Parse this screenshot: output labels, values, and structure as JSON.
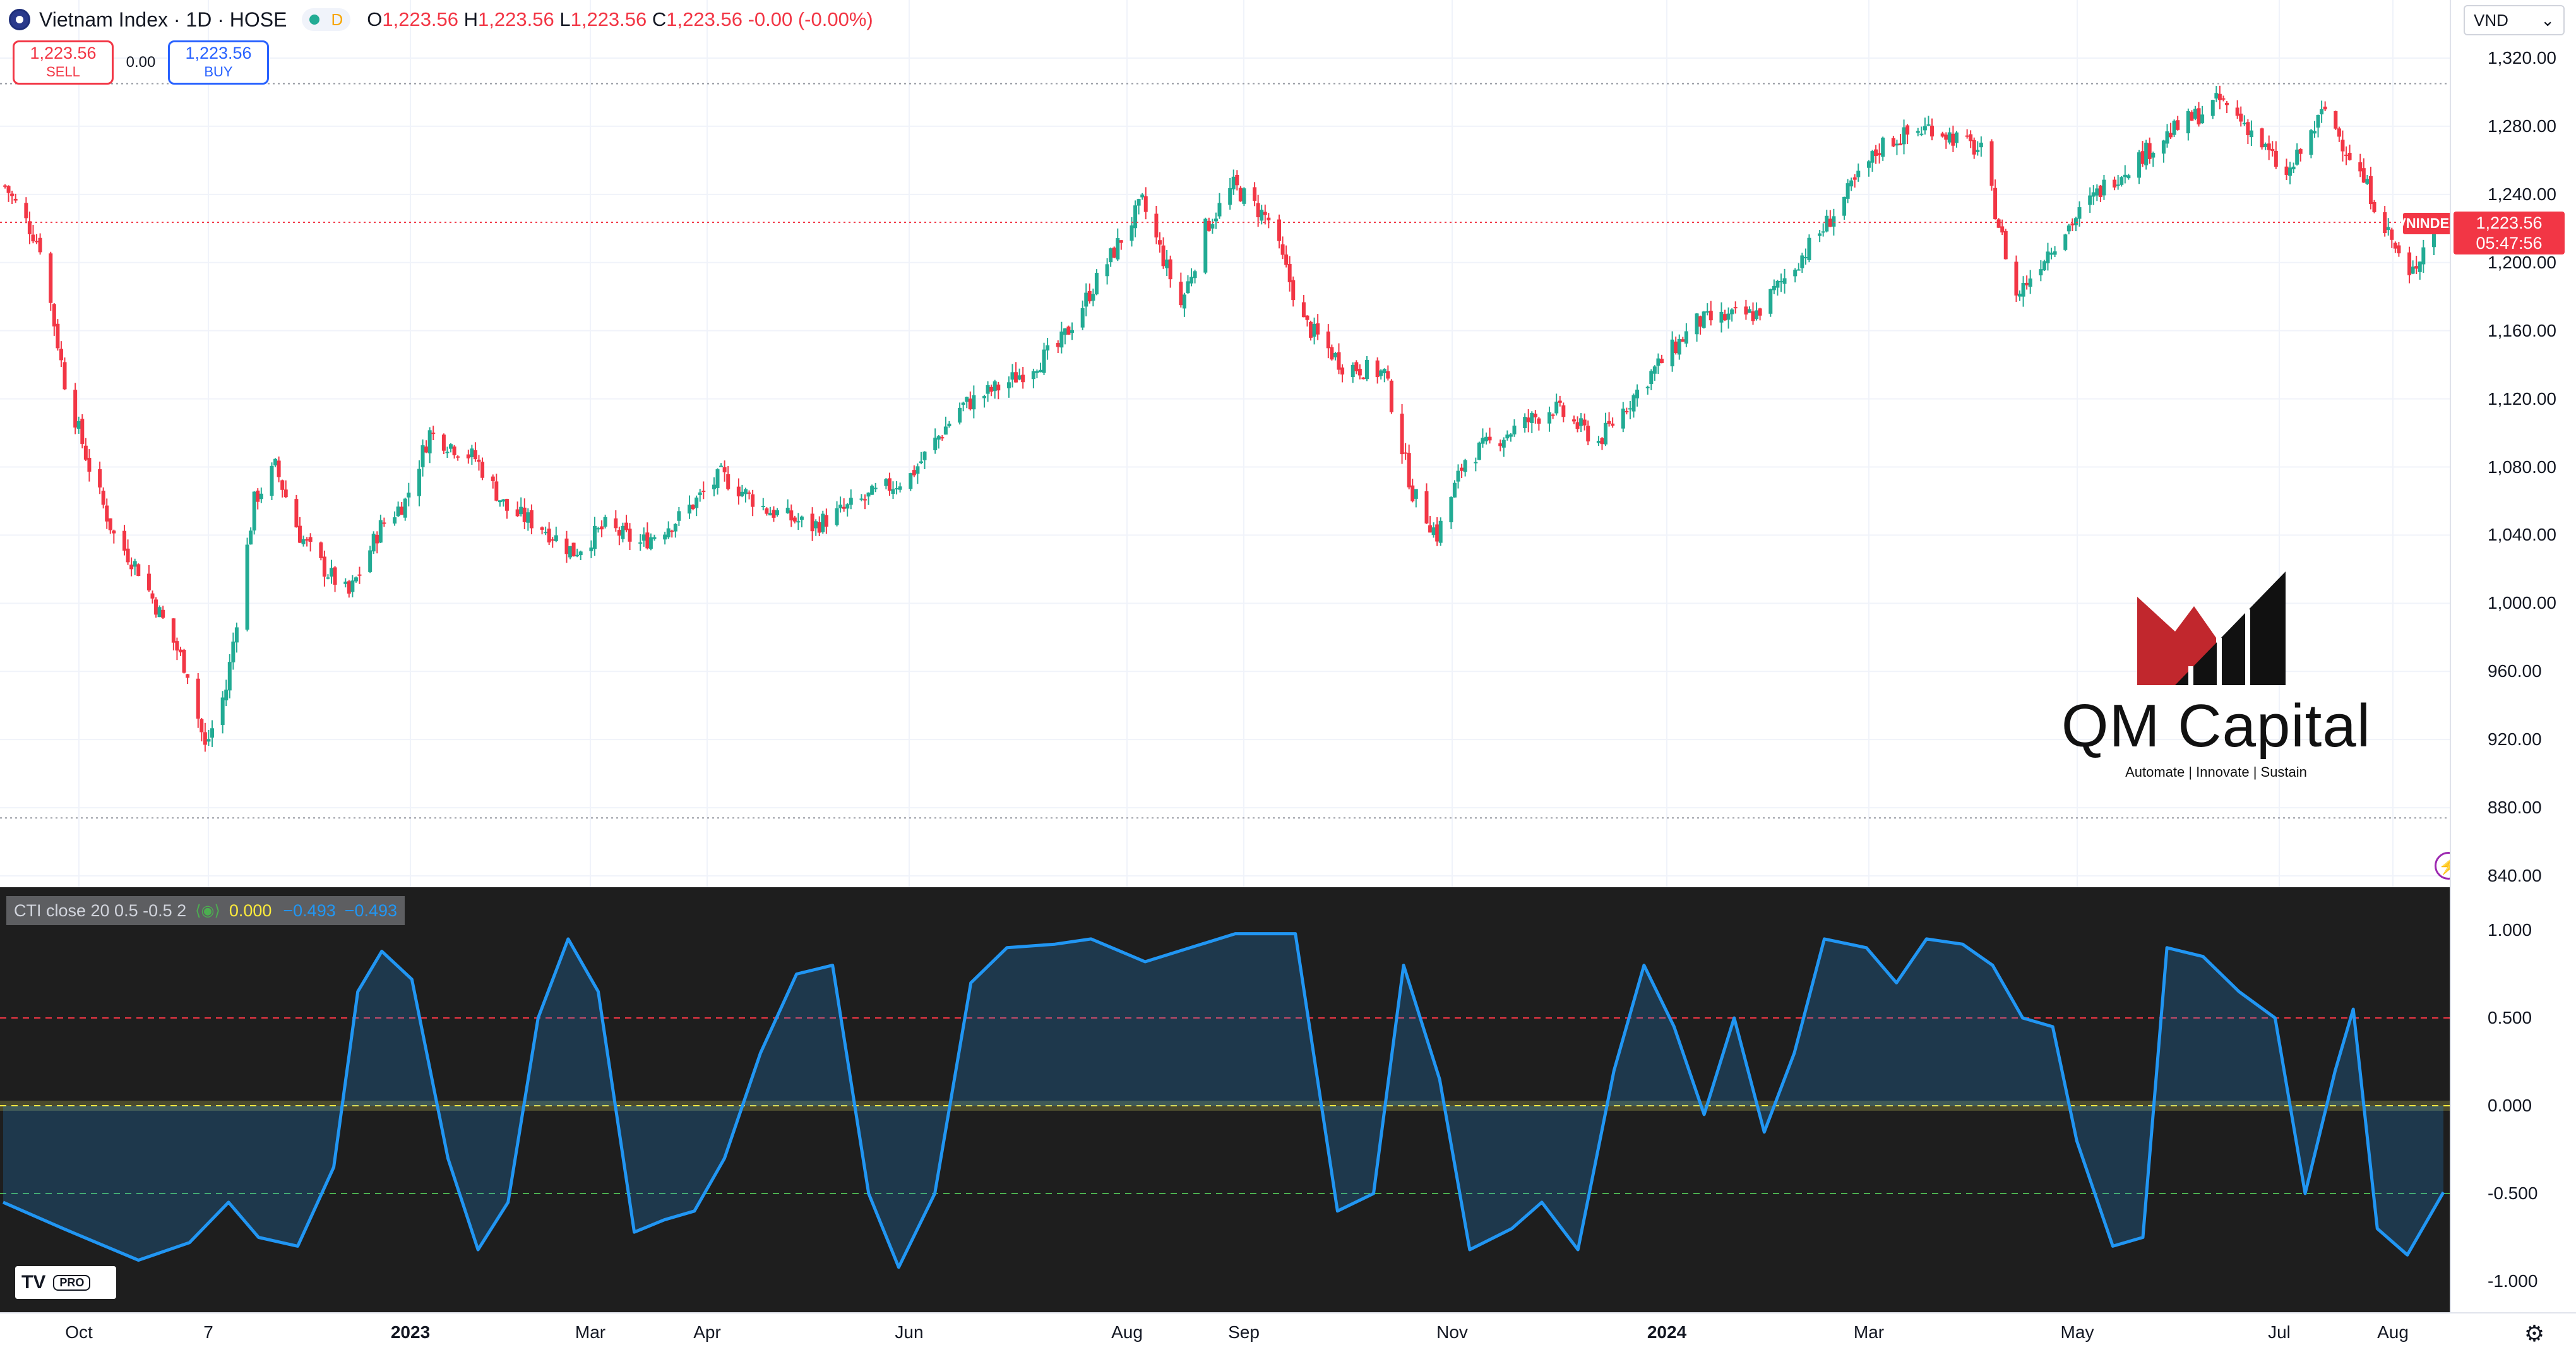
{
  "header": {
    "symbol_title": "Vietnam Index · 1D · HOSE",
    "interval_badge": "D",
    "ohlc": {
      "o_key": "O",
      "o_val": "1,223.56",
      "h_key": "H",
      "h_val": "1,223.56",
      "l_key": "L",
      "l_val": "1,223.56",
      "c_key": "C",
      "c_val": "1,223.56",
      "change": "-0.00 (-0.00%)"
    }
  },
  "trading": {
    "sell_price": "1,223.56",
    "sell_label": "SELL",
    "spread": "0.00",
    "buy_price": "1,223.56",
    "buy_label": "BUY"
  },
  "price_axis": {
    "currency": "VND",
    "currency_icon": "chevron-down-icon",
    "labels": [
      "1,320.00",
      "1,280.00",
      "1,240.00",
      "1,200.00",
      "1,160.00",
      "1,120.00",
      "1,080.00",
      "1,040.00",
      "1,000.00",
      "960.00",
      "920.00",
      "880.00",
      "840.00"
    ],
    "last_price": "1,223.56",
    "countdown": "05:47:56",
    "symbol_tag": "VNINDEX",
    "alert_icon": "lightning-icon"
  },
  "watermark": {
    "name": "QM Capital",
    "tagline": "Automate | Innovate | Sustain"
  },
  "indicator": {
    "legend_name": "CTI close 20 0.5 -0.5 2",
    "eye_icon": "eye-icon",
    "value_zero": "0.000",
    "value_a": "−0.493",
    "value_b": "−0.493",
    "axis_labels": [
      "1.000",
      "0.500",
      "0.000",
      "-0.500",
      "-1.000"
    ],
    "badge_logo": "TV",
    "badge_pro": "PRO"
  },
  "time_axis": {
    "labels": [
      {
        "text": "Oct",
        "bold": false
      },
      {
        "text": "7",
        "bold": false
      },
      {
        "text": "2023",
        "bold": true
      },
      {
        "text": "Mar",
        "bold": false
      },
      {
        "text": "Apr",
        "bold": false
      },
      {
        "text": "Jun",
        "bold": false
      },
      {
        "text": "Aug",
        "bold": false
      },
      {
        "text": "Sep",
        "bold": false
      },
      {
        "text": "Nov",
        "bold": false
      },
      {
        "text": "2024",
        "bold": true
      },
      {
        "text": "Mar",
        "bold": false
      },
      {
        "text": "May",
        "bold": false
      },
      {
        "text": "Jul",
        "bold": false
      },
      {
        "text": "Aug",
        "bold": false
      }
    ],
    "settings_icon": "gear-icon"
  },
  "chart_data": [
    {
      "type": "candlestick",
      "title": "Vietnam Index · 1D · HOSE",
      "ylim": [
        840,
        1320
      ],
      "ylabel": "VND",
      "grid": true,
      "series": [
        {
          "name": "VNINDEX",
          "close_path": [
            [
              "2022-09-20",
              1245
            ],
            [
              "2022-09-30",
              1210
            ],
            [
              "2022-10-07",
              1130
            ],
            [
              "2022-10-14",
              1080
            ],
            [
              "2022-10-21",
              1040
            ],
            [
              "2022-10-28",
              1020
            ],
            [
              "2022-11-04",
              990
            ],
            [
              "2022-11-11",
              960
            ],
            [
              "2022-11-16",
              915
            ],
            [
              "2022-11-22",
              950
            ],
            [
              "2022-11-30",
              1060
            ],
            [
              "2022-12-06",
              1080
            ],
            [
              "2022-12-13",
              1040
            ],
            [
              "2022-12-20",
              1020
            ],
            [
              "2022-12-27",
              1005
            ],
            [
              "2023-01-05",
              1045
            ],
            [
              "2023-01-12",
              1060
            ],
            [
              "2023-01-19",
              1100
            ],
            [
              "2023-02-01",
              1085
            ],
            [
              "2023-02-10",
              1055
            ],
            [
              "2023-02-20",
              1045
            ],
            [
              "2023-03-01",
              1030
            ],
            [
              "2023-03-10",
              1045
            ],
            [
              "2023-03-20",
              1035
            ],
            [
              "2023-03-31",
              1050
            ],
            [
              "2023-04-12",
              1075
            ],
            [
              "2023-04-25",
              1055
            ],
            [
              "2023-05-08",
              1045
            ],
            [
              "2023-05-22",
              1060
            ],
            [
              "2023-06-05",
              1075
            ],
            [
              "2023-06-19",
              1115
            ],
            [
              "2023-07-03",
              1130
            ],
            [
              "2023-07-17",
              1150
            ],
            [
              "2023-07-31",
              1200
            ],
            [
              "2023-08-10",
              1235
            ],
            [
              "2023-08-21",
              1175
            ],
            [
              "2023-08-28",
              1220
            ],
            [
              "2023-09-05",
              1245
            ],
            [
              "2023-09-15",
              1225
            ],
            [
              "2023-09-25",
              1165
            ],
            [
              "2023-10-06",
              1140
            ],
            [
              "2023-10-18",
              1135
            ],
            [
              "2023-10-26",
              1065
            ],
            [
              "2023-11-02",
              1040
            ],
            [
              "2023-11-10",
              1085
            ],
            [
              "2023-11-22",
              1100
            ],
            [
              "2023-12-05",
              1115
            ],
            [
              "2023-12-18",
              1095
            ],
            [
              "2024-01-02",
              1135
            ],
            [
              "2024-01-15",
              1165
            ],
            [
              "2024-02-01",
              1170
            ],
            [
              "2024-02-20",
              1220
            ],
            [
              "2024-03-08",
              1270
            ],
            [
              "2024-03-22",
              1280
            ],
            [
              "2024-04-05",
              1265
            ],
            [
              "2024-04-15",
              1180
            ],
            [
              "2024-04-25",
              1210
            ],
            [
              "2024-05-10",
              1245
            ],
            [
              "2024-05-28",
              1275
            ],
            [
              "2024-06-12",
              1295
            ],
            [
              "2024-06-20",
              1280
            ],
            [
              "2024-07-01",
              1250
            ],
            [
              "2024-07-12",
              1290
            ],
            [
              "2024-07-25",
              1240
            ],
            [
              "2024-08-05",
              1190
            ],
            [
              "2024-08-12",
              1223.56
            ]
          ]
        }
      ]
    },
    {
      "type": "line",
      "title": "CTI close 20 0.5 -0.5 2",
      "ylim": [
        -1.05,
        1.05
      ],
      "grid": false,
      "reference_levels": [
        0.5,
        0.0,
        -0.5
      ],
      "series": [
        {
          "name": "CTI",
          "values": [
            [
              0,
              -0.55
            ],
            [
              20,
              -0.7
            ],
            [
              45,
              -0.88
            ],
            [
              62,
              -0.78
            ],
            [
              75,
              -0.55
            ],
            [
              85,
              -0.75
            ],
            [
              98,
              -0.8
            ],
            [
              110,
              -0.35
            ],
            [
              118,
              0.65
            ],
            [
              126,
              0.88
            ],
            [
              136,
              0.72
            ],
            [
              148,
              -0.3
            ],
            [
              158,
              -0.82
            ],
            [
              168,
              -0.55
            ],
            [
              178,
              0.5
            ],
            [
              188,
              0.95
            ],
            [
              198,
              0.65
            ],
            [
              210,
              -0.72
            ],
            [
              220,
              -0.65
            ],
            [
              230,
              -0.6
            ],
            [
              240,
              -0.3
            ],
            [
              252,
              0.3
            ],
            [
              264,
              0.75
            ],
            [
              276,
              0.8
            ],
            [
              288,
              -0.5
            ],
            [
              298,
              -0.92
            ],
            [
              310,
              -0.5
            ],
            [
              322,
              0.7
            ],
            [
              334,
              0.9
            ],
            [
              350,
              0.92
            ],
            [
              362,
              0.95
            ],
            [
              380,
              0.82
            ],
            [
              395,
              0.9
            ],
            [
              410,
              0.98
            ],
            [
              430,
              0.98
            ],
            [
              444,
              -0.6
            ],
            [
              456,
              -0.5
            ],
            [
              466,
              0.8
            ],
            [
              478,
              0.15
            ],
            [
              488,
              -0.82
            ],
            [
              502,
              -0.7
            ],
            [
              512,
              -0.55
            ],
            [
              524,
              -0.82
            ],
            [
              536,
              0.2
            ],
            [
              546,
              0.8
            ],
            [
              556,
              0.45
            ],
            [
              566,
              -0.05
            ],
            [
              576,
              0.5
            ],
            [
              586,
              -0.15
            ],
            [
              596,
              0.3
            ],
            [
              606,
              0.95
            ],
            [
              620,
              0.9
            ],
            [
              630,
              0.7
            ],
            [
              640,
              0.95
            ],
            [
              652,
              0.92
            ],
            [
              662,
              0.8
            ],
            [
              672,
              0.5
            ],
            [
              682,
              0.45
            ],
            [
              690,
              -0.2
            ],
            [
              702,
              -0.8
            ],
            [
              712,
              -0.75
            ],
            [
              720,
              0.9
            ],
            [
              732,
              0.85
            ],
            [
              744,
              0.65
            ],
            [
              756,
              0.5
            ],
            [
              766,
              -0.5
            ],
            [
              776,
              0.2
            ],
            [
              782,
              0.55
            ],
            [
              790,
              -0.7
            ],
            [
              800,
              -0.85
            ],
            [
              812,
              -0.493
            ]
          ]
        }
      ]
    }
  ]
}
